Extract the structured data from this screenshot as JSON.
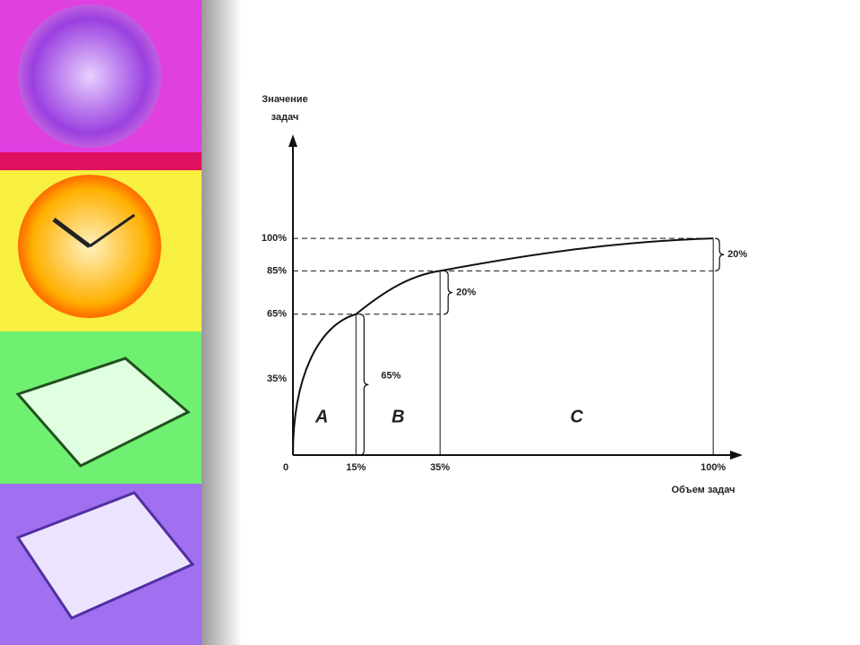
{
  "chart_data": {
    "type": "line",
    "y_label": "Значение задач",
    "x_label": "Объем задач",
    "x": [
      0,
      15,
      35,
      100
    ],
    "series": [
      {
        "color": "#111111",
        "values": [
          0,
          65,
          85,
          100
        ]
      }
    ],
    "xlim": [
      0,
      107
    ],
    "ylim": [
      0,
      148
    ],
    "xticks": [
      0,
      {
        "value": 15,
        "label": "15%"
      },
      {
        "value": 35,
        "label": "35%"
      },
      {
        "value": 100,
        "label": "100%"
      }
    ],
    "yticks": [
      {
        "value": 35,
        "label": "35%"
      },
      {
        "value": 65,
        "label": "65%"
      },
      {
        "value": 85,
        "label": "85%"
      },
      {
        "value": 100,
        "label": "100%"
      }
    ],
    "annotations": [
      "65%",
      "20%",
      "20%"
    ],
    "regions": [
      "A",
      "B",
      "C"
    ]
  }
}
